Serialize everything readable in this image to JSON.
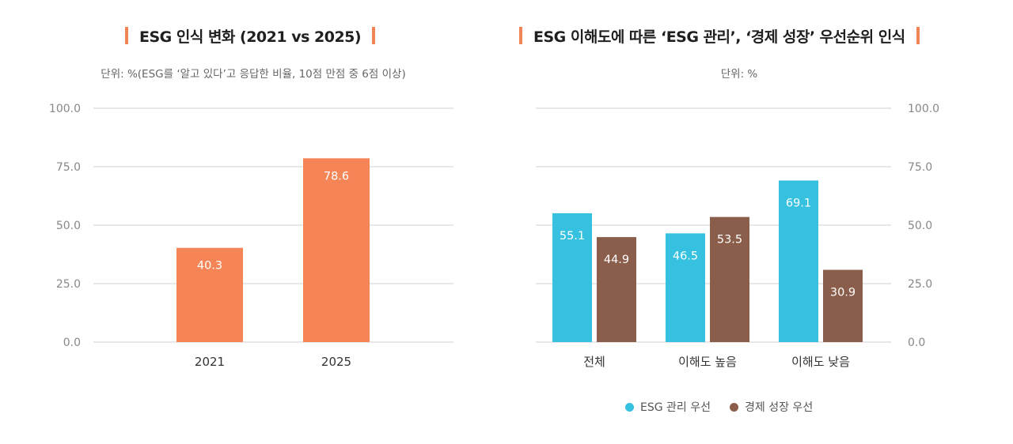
{
  "chart_data": [
    {
      "type": "bar",
      "title": "ESG 인식 변화 (2021 vs 2025)",
      "subtitle": "단위: %(ESG를 ‘알고 있다’고 응답한 비율, 10점 만점 중 6점 이상)",
      "categories": [
        "2021",
        "2025"
      ],
      "values": [
        40.3,
        78.6
      ],
      "value_labels": [
        "40.3",
        "78.6"
      ],
      "yticks": [
        "0.0",
        "25.0",
        "50.0",
        "75.0",
        "100.0"
      ],
      "ylim": [
        0,
        100
      ],
      "grid": true,
      "xlabel": "",
      "ylabel": "",
      "color": "#f58456"
    },
    {
      "type": "bar",
      "title": "ESG 이해도에 따른 ‘ESG 관리’, ‘경제 성장’ 우선순위 인식",
      "subtitle": "단위: %",
      "categories": [
        "전체",
        "이해도 높음",
        "이해도 낮음"
      ],
      "series": [
        {
          "name": "ESG 관리 우선",
          "values": [
            55.1,
            46.5,
            69.1
          ],
          "value_labels": [
            "55.1",
            "46.5",
            "69.1"
          ],
          "color": "#35c1df"
        },
        {
          "name": "경제 성장 우선",
          "values": [
            44.9,
            53.5,
            30.9
          ],
          "value_labels": [
            "44.9",
            "53.5",
            "30.9"
          ],
          "color": "#8a5e4b"
        }
      ],
      "yticks": [
        "0.0",
        "25.0",
        "50.0",
        "75.0",
        "100.0"
      ],
      "ylim": [
        0,
        100
      ],
      "grid": true,
      "legend": "bottom",
      "xlabel": "",
      "ylabel": ""
    }
  ]
}
